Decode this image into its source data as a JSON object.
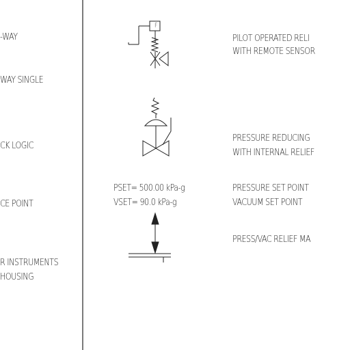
{
  "left_column": {
    "item1": "-WAY",
    "item2": "WAY SINGLE",
    "item3": "CK LOGIC",
    "item4": "CE POINT",
    "item5_line1": "R INSTRUMENTS",
    "item5_line2": "HOUSING"
  },
  "pilot_relief": {
    "box_letter": "F",
    "line1": "PILOT OPERATED RELI",
    "line2": "WITH REMOTE SENSOR"
  },
  "pressure_reducing": {
    "line1": "PRESSURE REDUCING",
    "line2": "WITH INTERNAL RELIEF"
  },
  "set_points": {
    "pset": "PSET= 500.00 kPa-g",
    "vset": "VSET= 90.0 kPa-g",
    "pset_desc": "PRESSURE SET POINT",
    "vset_desc": "VACUUM SET POINT"
  },
  "press_vac_relief": {
    "label": "PRESS/VAC RELIEF MA"
  }
}
